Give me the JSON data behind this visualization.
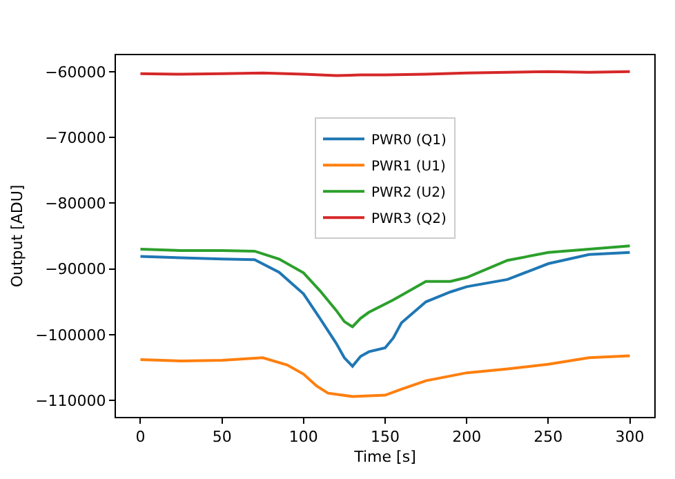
{
  "chart_data": {
    "type": "line",
    "xlabel": "Time [s]",
    "ylabel": "Output [ADU]",
    "xlim": [
      -15,
      315
    ],
    "ylim": [
      -112500,
      -57500
    ],
    "xticks": [
      0,
      50,
      100,
      150,
      200,
      250,
      300
    ],
    "yticks": [
      -110000,
      -100000,
      -90000,
      -80000,
      -70000,
      -60000
    ],
    "legend": "center",
    "marker": "none",
    "line_style": "solid",
    "series": [
      {
        "name": "PWR0 (Q1)",
        "color": "#1f77b4",
        "x": [
          0,
          25,
          50,
          70,
          85,
          100,
          110,
          120,
          125,
          130,
          135,
          140,
          150,
          155,
          160,
          175,
          190,
          200,
          225,
          250,
          275,
          300
        ],
        "values": [
          -88100,
          -88300,
          -88500,
          -88600,
          -90500,
          -93800,
          -97500,
          -101300,
          -103500,
          -104800,
          -103300,
          -102600,
          -102000,
          -100500,
          -98200,
          -95000,
          -93500,
          -92700,
          -91600,
          -89200,
          -87800,
          -87500
        ]
      },
      {
        "name": "PWR1 (U1)",
        "color": "#ff7f0e",
        "x": [
          0,
          25,
          50,
          75,
          90,
          100,
          108,
          115,
          130,
          150,
          160,
          175,
          200,
          225,
          250,
          275,
          300
        ],
        "values": [
          -103800,
          -104000,
          -103900,
          -103500,
          -104600,
          -106000,
          -107800,
          -108900,
          -109400,
          -109200,
          -108300,
          -107000,
          -105800,
          -105200,
          -104500,
          -103500,
          -103200
        ]
      },
      {
        "name": "PWR2 (U2)",
        "color": "#2ca02c",
        "x": [
          0,
          25,
          50,
          70,
          85,
          100,
          110,
          120,
          125,
          130,
          135,
          140,
          155,
          175,
          190,
          200,
          225,
          250,
          275,
          300
        ],
        "values": [
          -87000,
          -87200,
          -87200,
          -87300,
          -88500,
          -90600,
          -93300,
          -96300,
          -98000,
          -98800,
          -97500,
          -96600,
          -94700,
          -91900,
          -91900,
          -91300,
          -88700,
          -87500,
          -87000,
          -86500
        ]
      },
      {
        "name": "PWR3 (Q2)",
        "color": "#d62728",
        "x": [
          0,
          25,
          50,
          75,
          100,
          120,
          135,
          150,
          175,
          200,
          225,
          250,
          275,
          300
        ],
        "values": [
          -60300,
          -60400,
          -60300,
          -60200,
          -60400,
          -60600,
          -60500,
          -60500,
          -60400,
          -60200,
          -60100,
          -60000,
          -60100,
          -60000
        ]
      }
    ]
  }
}
